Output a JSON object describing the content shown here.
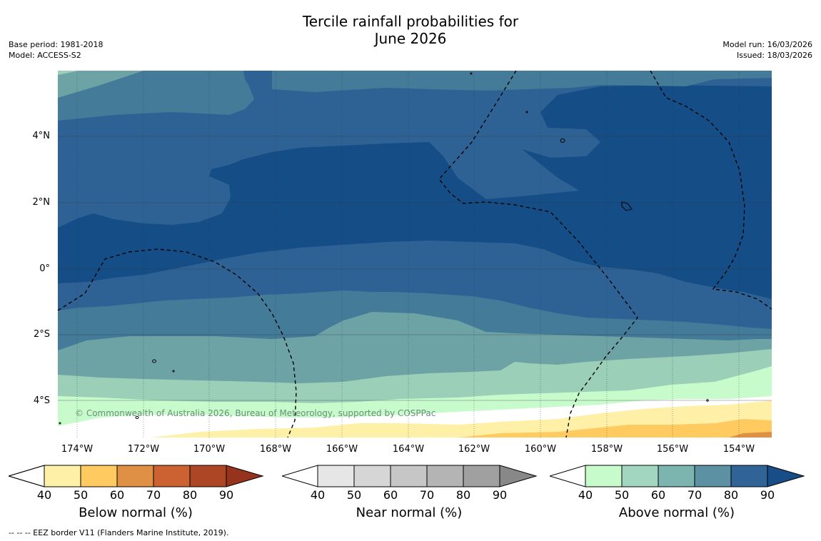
{
  "title": {
    "line1": "Tercile rainfall probabilities for",
    "line2": "June 2026"
  },
  "meta": {
    "base_period": "Base period: 1981-2018",
    "model": "Model: ACCESS-S2",
    "model_run": "Model run: 16/03/2026",
    "issued": "Issued: 18/03/2026"
  },
  "map": {
    "lat_labels": [
      "4°N",
      "2°N",
      "0°",
      "2°S",
      "4°S"
    ],
    "lon_labels": [
      "174°W",
      "172°W",
      "170°W",
      "168°W",
      "166°W",
      "164°W",
      "162°W",
      "160°W",
      "158°W",
      "156°W",
      "154°W"
    ],
    "copyright": "© Commonwealth of Australia 2026, Bureau of Meteorology, supported by COSPPac"
  },
  "colorbars": [
    {
      "title": "Below normal (%)",
      "ticks": [
        "40",
        "50",
        "60",
        "70",
        "80",
        "90"
      ],
      "colors": [
        "#fff0a8",
        "#ffca60",
        "#e09044",
        "#cc6232",
        "#ad4624",
        "#96331c"
      ]
    },
    {
      "title": "Near normal (%)",
      "ticks": [
        "40",
        "50",
        "60",
        "70",
        "80",
        "90"
      ],
      "colors": [
        "#e6e6e6",
        "#d6d6d6",
        "#c6c6c6",
        "#b4b4b4",
        "#a0a0a0",
        "#888888"
      ]
    },
    {
      "title": "Above normal (%)",
      "ticks": [
        "40",
        "50",
        "60",
        "70",
        "80",
        "90"
      ],
      "colors": [
        "#c8fbcc",
        "#a2d6c0",
        "#7cb5b0",
        "#5b91a3",
        "#306396",
        "#174e87"
      ]
    }
  ],
  "footnote": "--  --  -- EEZ border V11 (Flanders Marine Institute, 2019).",
  "palette": {
    "above_40": "#c8fbcc",
    "above_50": "#9ccfb8",
    "above_60": "#6ea3a6",
    "above_70": "#437b98",
    "above_80": "#2f6294",
    "above_90": "#154d86",
    "below_40": "#fff0a8",
    "below_50": "#ffca60",
    "below_60": "#e09044"
  }
}
